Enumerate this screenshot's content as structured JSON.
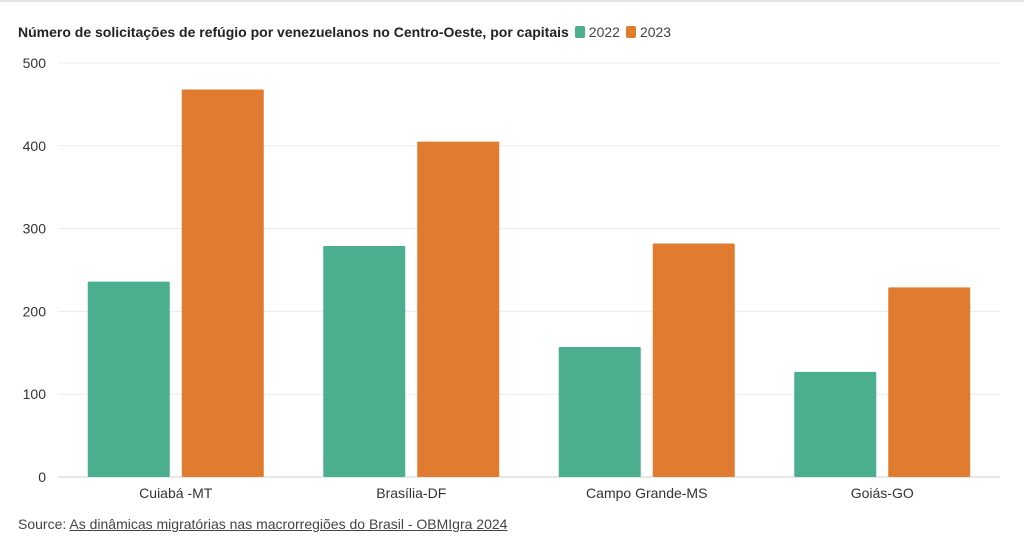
{
  "chart_data": {
    "type": "bar",
    "title": "Número de solicitações de refúgio por venezuelanos no Centro-Oeste, por capitais",
    "categories": [
      "Cuiabá -MT",
      "Brasília-DF",
      "Campo Grande-MS",
      "Goiás-GO"
    ],
    "series": [
      {
        "name": "2022",
        "values": [
          236,
          279,
          157,
          127
        ],
        "color": "#4aae8f"
      },
      {
        "name": "2023",
        "values": [
          468,
          405,
          282,
          229
        ],
        "color": "#e07b2f"
      }
    ],
    "ylim": [
      0,
      500
    ],
    "yticks": [
      0,
      100,
      200,
      300,
      400,
      500
    ],
    "grid": true,
    "legend_position": "top, inline after title"
  },
  "source": {
    "prefix": "Source: ",
    "link_text": "As dinâmicas migratórias nas macrorregiões do Brasil - OBMIgra 2024"
  }
}
